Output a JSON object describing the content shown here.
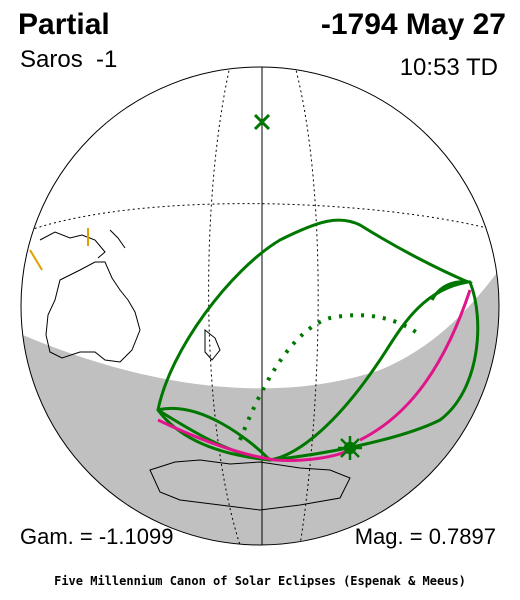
{
  "header": {
    "eclipse_type": "Partial",
    "date": "-1794 May 27",
    "saros": "Saros  -1",
    "time": "10:53 TD"
  },
  "footer": {
    "gamma": "Gam. = -1.1099",
    "magnitude": "Mag. = 0.7897",
    "credit": "Five Millennium Canon of Solar Eclipses (Espenak & Meeus)"
  }
}
